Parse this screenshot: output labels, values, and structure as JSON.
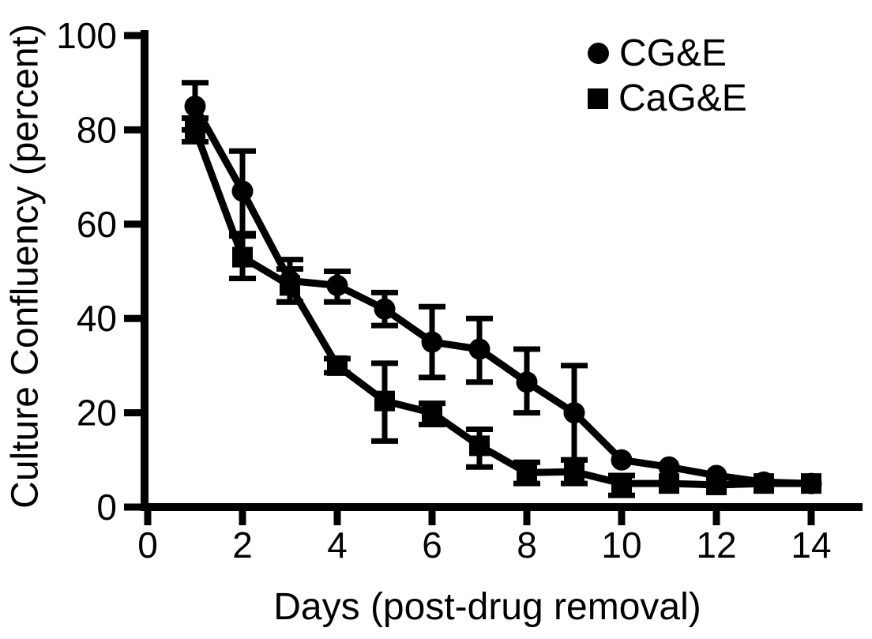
{
  "figure": {
    "background": "#ffffff",
    "ink": "#000000"
  },
  "chart_data": {
    "type": "line",
    "title": "",
    "xlabel": "Days (post-drug removal)",
    "ylabel": "Culture Confluency (percent)",
    "xlim": [
      0,
      15
    ],
    "ylim": [
      0,
      100
    ],
    "xticks": [
      0,
      2,
      4,
      6,
      8,
      10,
      12,
      14
    ],
    "yticks": [
      0,
      20,
      40,
      60,
      80,
      100
    ],
    "grid": false,
    "legend_position": "top-right",
    "error_bars": true,
    "x": [
      1,
      2,
      3,
      4,
      5,
      6,
      7,
      8,
      9,
      10,
      11,
      12,
      13,
      14
    ],
    "series": [
      {
        "name": "CG&E",
        "marker": "circle",
        "values": [
          85,
          67,
          48,
          47,
          42,
          35,
          33.5,
          26.5,
          20,
          10,
          8.5,
          6.7,
          5.3,
          5
        ],
        "err_hi": [
          90,
          75.5,
          52.5,
          50,
          45.5,
          42.5,
          40,
          33.5,
          30,
          null,
          null,
          null,
          null,
          null
        ],
        "err_lo": [
          80,
          58,
          43.5,
          43.5,
          38.5,
          27.5,
          26.5,
          20,
          10,
          null,
          null,
          null,
          null,
          null
        ]
      },
      {
        "name": "CaG&E",
        "marker": "square",
        "values": [
          80,
          53,
          47,
          30,
          22.5,
          20,
          13,
          7.3,
          7.5,
          5,
          5,
          4.7,
          5,
          5
        ],
        "err_hi": [
          82.5,
          57.5,
          50.5,
          31.5,
          30.5,
          22,
          16.5,
          9.5,
          10,
          6.7,
          null,
          null,
          null,
          null
        ],
        "err_lo": [
          77.5,
          48.5,
          43.5,
          28.5,
          14,
          17.5,
          8.5,
          5,
          5,
          2.5,
          null,
          null,
          null,
          null
        ]
      }
    ]
  }
}
